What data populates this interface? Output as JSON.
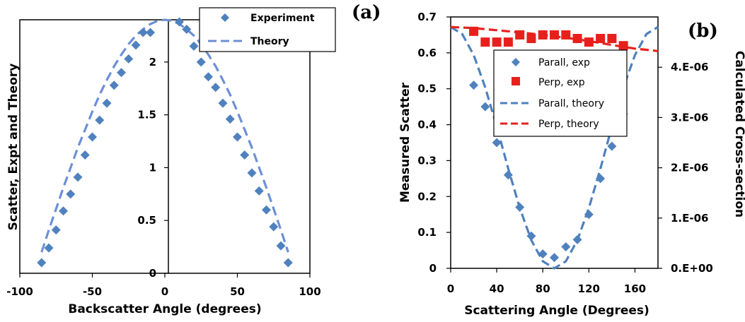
{
  "chart_data": [
    {
      "type": "scatter",
      "panel_label": "(a)",
      "xlabel": "Backscatter Angle (degrees)",
      "ylabel": "Scatter, Expt and Theory",
      "xlim": [
        -100,
        100
      ],
      "ylim": [
        0,
        2.4
      ],
      "xticks": [
        "-100",
        "-50",
        "0",
        "50",
        "100"
      ],
      "yticks": [
        "0",
        "0.5",
        "1",
        "1.5",
        "2"
      ],
      "legend_position": "top-right",
      "grid": false,
      "colors": {
        "experiment": "#4f81bd",
        "theory": "#6d8fd6"
      },
      "series": [
        {
          "name": "Experiment",
          "kind": "marker",
          "marker": "diamond",
          "x": [
            -85,
            -80,
            -75,
            -70,
            -65,
            -60,
            -55,
            -50,
            -45,
            -40,
            -35,
            -30,
            -25,
            -20,
            -15,
            -10,
            10,
            15,
            20,
            25,
            30,
            35,
            40,
            45,
            50,
            55,
            60,
            65,
            70,
            75,
            80,
            85
          ],
          "y": [
            0.1,
            0.24,
            0.41,
            0.59,
            0.75,
            0.91,
            1.12,
            1.29,
            1.45,
            1.61,
            1.78,
            1.9,
            2.03,
            2.16,
            2.28,
            2.28,
            2.38,
            2.31,
            2.15,
            2.0,
            1.86,
            1.76,
            1.61,
            1.46,
            1.29,
            1.12,
            0.95,
            0.78,
            0.6,
            0.44,
            0.26,
            0.1
          ]
        },
        {
          "name": "Theory",
          "kind": "line",
          "dash": true,
          "x": [
            -85,
            -80,
            -75,
            -70,
            -65,
            -60,
            -55,
            -50,
            -45,
            -40,
            -35,
            -30,
            -25,
            -20,
            -15,
            -10,
            -5,
            0,
            5,
            10,
            15,
            20,
            25,
            30,
            35,
            40,
            45,
            50,
            55,
            60,
            65,
            70,
            75,
            80,
            85
          ],
          "y": [
            0.2,
            0.41,
            0.61,
            0.81,
            1.0,
            1.19,
            1.36,
            1.53,
            1.69,
            1.83,
            1.96,
            2.07,
            2.17,
            2.25,
            2.31,
            2.36,
            2.39,
            2.4,
            2.39,
            2.36,
            2.31,
            2.25,
            2.17,
            2.07,
            1.96,
            1.83,
            1.69,
            1.53,
            1.36,
            1.19,
            1.0,
            0.81,
            0.61,
            0.41,
            0.2
          ]
        }
      ]
    },
    {
      "type": "scatter",
      "panel_label": "(b)",
      "xlabel": "Scattering Angle (Degrees)",
      "ylabel": "Measured Scatter",
      "y2label": "Calculated Cross-section",
      "xlim": [
        0,
        180
      ],
      "ylim": [
        0,
        0.7
      ],
      "y2lim": [
        0,
        5e-06
      ],
      "xticks": [
        "0",
        "40",
        "80",
        "120",
        "160"
      ],
      "yticks": [
        "0",
        "0.1",
        "0.2",
        "0.3",
        "0.4",
        "0.5",
        "0.6",
        "0.7"
      ],
      "y2ticks": [
        "0.E+00",
        "1.E-06",
        "2.E-06",
        "3.E-06",
        "4.E-06"
      ],
      "legend_position": "center",
      "grid": false,
      "colors": {
        "parall": "#4f81bd",
        "perp": "#e8201c"
      },
      "series": [
        {
          "name": "Parall, exp",
          "kind": "marker",
          "marker": "diamond",
          "axis": "left",
          "x": [
            20,
            30,
            40,
            50,
            60,
            70,
            80,
            90,
            100,
            110,
            120,
            130,
            140,
            150
          ],
          "y": [
            0.51,
            0.45,
            0.35,
            0.26,
            0.17,
            0.09,
            0.04,
            0.03,
            0.06,
            0.08,
            0.15,
            0.25,
            0.34,
            0.43
          ]
        },
        {
          "name": "Perp, exp",
          "kind": "marker",
          "marker": "square",
          "axis": "left",
          "x": [
            20,
            30,
            40,
            50,
            60,
            70,
            80,
            90,
            100,
            110,
            120,
            130,
            140,
            150
          ],
          "y": [
            0.66,
            0.63,
            0.63,
            0.63,
            0.65,
            0.64,
            0.65,
            0.65,
            0.65,
            0.64,
            0.63,
            0.64,
            0.64,
            0.62
          ]
        },
        {
          "name": "Parall, theory",
          "kind": "line",
          "dash": true,
          "axis": "right",
          "x": [
            0,
            10,
            20,
            30,
            40,
            50,
            60,
            70,
            80,
            90,
            100,
            110,
            120,
            130,
            140,
            150,
            160,
            170,
            180
          ],
          "y": [
            4.8e-06,
            4.66e-06,
            4.24e-06,
            3.6e-06,
            2.82e-06,
            1.98e-06,
            1.2e-06,
            5.6e-07,
            1.4e-07,
            0.0,
            1.4e-07,
            5.6e-07,
            1.2e-06,
            1.98e-06,
            2.82e-06,
            3.6e-06,
            4.24e-06,
            4.66e-06,
            4.8e-06
          ]
        },
        {
          "name": "Perp, theory",
          "kind": "line",
          "dash": true,
          "axis": "left",
          "x": [
            0,
            20,
            40,
            60,
            80,
            100,
            120,
            140,
            160,
            180
          ],
          "y": [
            0.672,
            0.669,
            0.663,
            0.657,
            0.65,
            0.642,
            0.633,
            0.622,
            0.612,
            0.605
          ]
        }
      ]
    }
  ]
}
